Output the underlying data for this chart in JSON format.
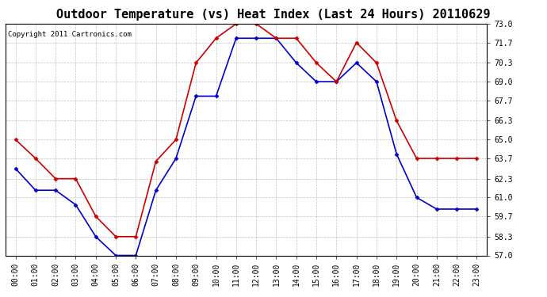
{
  "title": "Outdoor Temperature (vs) Heat Index (Last 24 Hours) 20110629",
  "copyright": "Copyright 2011 Cartronics.com",
  "x_labels": [
    "00:00",
    "01:00",
    "02:00",
    "03:00",
    "04:00",
    "05:00",
    "06:00",
    "07:00",
    "08:00",
    "09:00",
    "10:00",
    "11:00",
    "12:00",
    "13:00",
    "14:00",
    "15:00",
    "16:00",
    "17:00",
    "18:00",
    "19:00",
    "20:00",
    "21:00",
    "22:00",
    "23:00"
  ],
  "blue_temp": [
    63.0,
    61.5,
    61.5,
    60.5,
    58.3,
    57.0,
    57.0,
    61.5,
    63.7,
    68.0,
    68.0,
    72.0,
    72.0,
    72.0,
    70.3,
    69.0,
    69.0,
    70.3,
    69.0,
    64.0,
    61.0,
    60.2,
    60.2,
    60.2
  ],
  "red_heat": [
    65.0,
    63.7,
    62.3,
    62.3,
    59.7,
    58.3,
    58.3,
    63.5,
    65.0,
    70.3,
    72.0,
    73.0,
    73.0,
    72.0,
    72.0,
    70.3,
    69.0,
    71.7,
    70.3,
    66.3,
    63.7,
    63.7,
    63.7,
    63.7
  ],
  "ylim": [
    57.0,
    73.0
  ],
  "yticks": [
    57.0,
    58.3,
    59.7,
    61.0,
    62.3,
    63.7,
    65.0,
    66.3,
    67.7,
    69.0,
    70.3,
    71.7,
    73.0
  ],
  "blue_color": "#0000cc",
  "red_color": "#cc0000",
  "marker": "D",
  "marker_size": 2.5,
  "line_width": 1.2,
  "bg_color": "#ffffff",
  "grid_color": "#999999",
  "title_fontsize": 11,
  "axis_label_fontsize": 7,
  "copyright_fontsize": 6.5
}
